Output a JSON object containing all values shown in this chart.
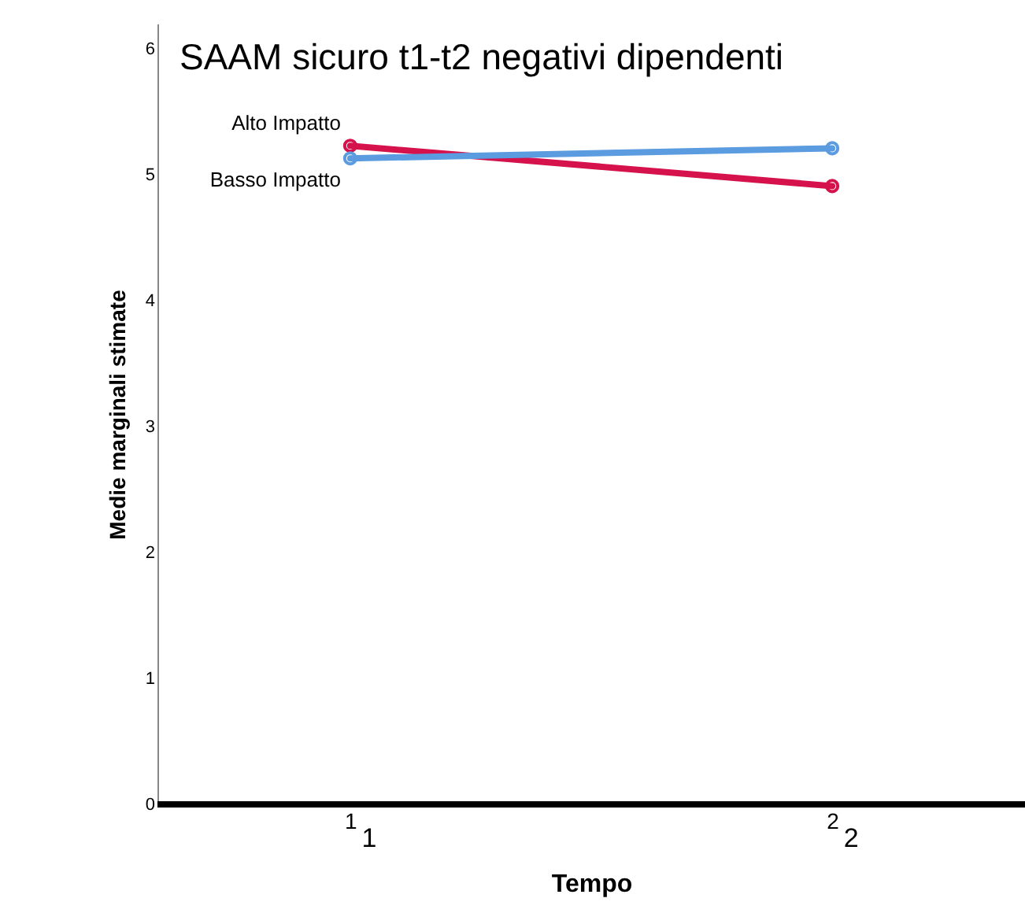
{
  "chart_data": {
    "type": "line",
    "title": "SAAM sicuro t1-t2 negativi dipendenti",
    "xlabel": "Tempo",
    "ylabel": "Medie marginali stimate",
    "categories": [
      "1",
      "2"
    ],
    "series": [
      {
        "name": "Alto Impatto",
        "color": "#d5124b",
        "values": [
          5.23,
          4.91
        ]
      },
      {
        "name": "Basso Impatto",
        "color": "#5b9be0",
        "values": [
          5.13,
          5.21
        ]
      }
    ],
    "ylim": [
      0,
      6.2
    ],
    "yticks": [
      0,
      1,
      2,
      3,
      4,
      5,
      6
    ],
    "grid": false,
    "legend": false,
    "marker": "circle",
    "line_style": "solid",
    "annotations": [
      "1",
      "2"
    ]
  }
}
